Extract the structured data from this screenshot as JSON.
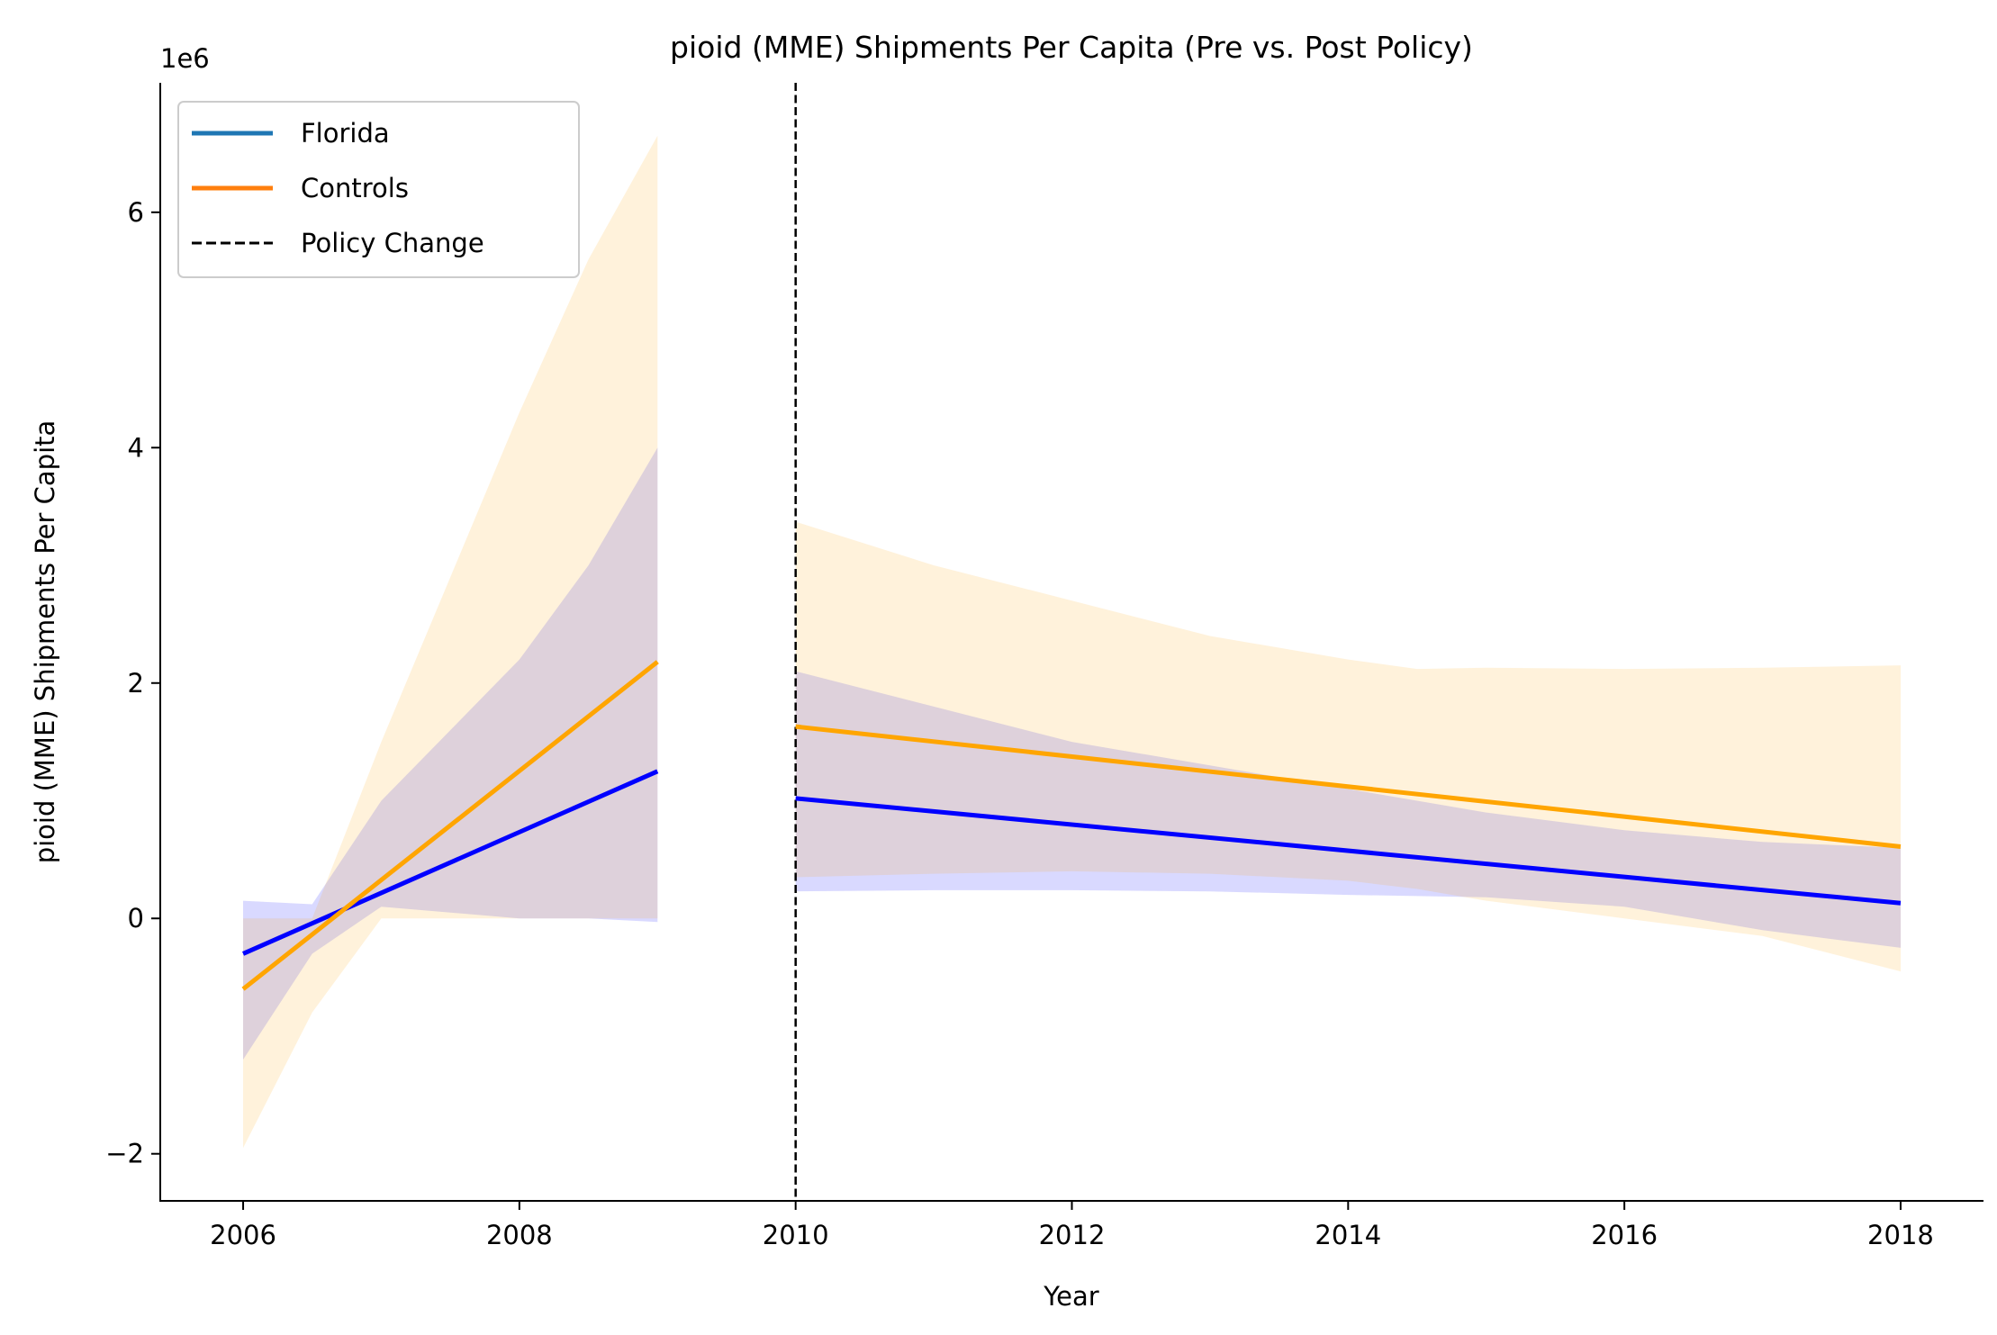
{
  "chart_data": {
    "type": "line",
    "title": "pioid (MME) Shipments Per Capita (Pre vs. Post Policy)",
    "xlabel": "Year",
    "ylabel": "pioid (MME) Shipments Per Capita",
    "y_offset_label": "1e6",
    "xlim": [
      2005.4,
      2018.6
    ],
    "ylim": [
      -2400000,
      7100000
    ],
    "x_ticks": [
      2006,
      2008,
      2010,
      2012,
      2014,
      2016,
      2018
    ],
    "x_tick_labels": [
      "2006",
      "2008",
      "2010",
      "2012",
      "2014",
      "2016",
      "2018"
    ],
    "y_ticks": [
      -2000000,
      0,
      2000000,
      4000000,
      6000000
    ],
    "y_tick_labels": [
      "−2",
      "0",
      "2",
      "4",
      "6"
    ],
    "grid": false,
    "legend_position": "top-left",
    "legend": [
      {
        "label": "Florida",
        "color": "#1f77b4",
        "style": "solid"
      },
      {
        "label": "Controls",
        "color": "#ff7f0e",
        "style": "solid"
      },
      {
        "label": "Policy Change",
        "color": "#000000",
        "style": "dashed"
      }
    ],
    "policy_change_x": 2010,
    "series": [
      {
        "name": "Florida",
        "color": "#0000ff",
        "band_color": "#0000ff",
        "segments": [
          {
            "x": [
              2006,
              2009
            ],
            "y": [
              -300000,
              1250000
            ],
            "band": {
              "x": [
                2006,
                2006.5,
                2007,
                2007.5,
                2008,
                2008.5,
                2009
              ],
              "lower": [
                -1200000,
                -300000,
                100000,
                50000,
                0,
                0,
                -30000
              ],
              "upper": [
                150000,
                120000,
                1000000,
                1600000,
                2200000,
                3000000,
                4000000
              ]
            }
          },
          {
            "x": [
              2010,
              2018
            ],
            "y": [
              1020000,
              130000
            ],
            "band": {
              "x": [
                2010,
                2011,
                2012,
                2013,
                2014,
                2015,
                2016,
                2017,
                2018
              ],
              "lower": [
                230000,
                240000,
                240000,
                230000,
                200000,
                180000,
                100000,
                -100000,
                -250000
              ],
              "upper": [
                2100000,
                1800000,
                1500000,
                1300000,
                1100000,
                900000,
                750000,
                650000,
                600000
              ]
            }
          }
        ]
      },
      {
        "name": "Controls",
        "color": "#ffa500",
        "band_color": "#ffa500",
        "segments": [
          {
            "x": [
              2006,
              2009
            ],
            "y": [
              -600000,
              2180000
            ],
            "band": {
              "x": [
                2006,
                2006.5,
                2007,
                2007.5,
                2008,
                2008.5,
                2009
              ],
              "lower": [
                -1950000,
                -800000,
                0,
                0,
                0,
                0,
                0
              ],
              "upper": [
                0,
                0,
                1500000,
                2900000,
                4300000,
                5600000,
                6650000
              ]
            }
          },
          {
            "x": [
              2010,
              2018
            ],
            "y": [
              1630000,
              610000
            ],
            "band": {
              "x": [
                2010,
                2011,
                2012,
                2013,
                2014,
                2014.5,
                2015,
                2016,
                2017,
                2018
              ],
              "lower": [
                350000,
                380000,
                400000,
                380000,
                320000,
                250000,
                150000,
                0,
                -150000,
                -450000
              ],
              "upper": [
                3370000,
                3000000,
                2700000,
                2400000,
                2200000,
                2120000,
                2130000,
                2120000,
                2130000,
                2150000
              ]
            }
          }
        ]
      }
    ]
  }
}
